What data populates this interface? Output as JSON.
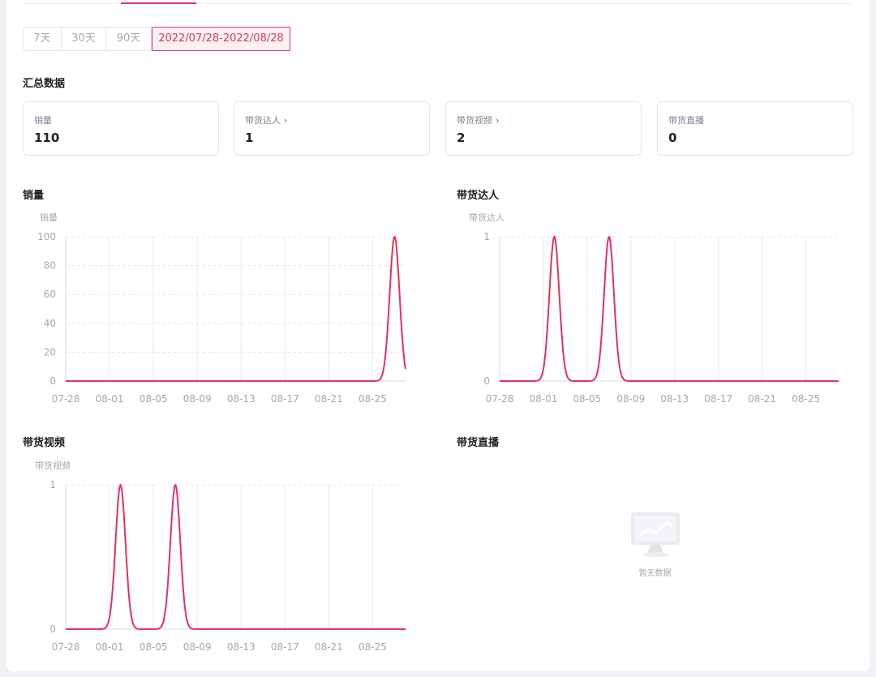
{
  "date_ranges": [
    {
      "label": "7天",
      "width": 48
    },
    {
      "label": "30天",
      "width": 55
    },
    {
      "label": "90天",
      "width": 56
    },
    {
      "label": "2022/07/28-2022/08/28",
      "width": 171,
      "active": true
    }
  ],
  "summary": {
    "title": "汇总数据",
    "cards": [
      {
        "label": "销量",
        "value": "110",
        "link": false
      },
      {
        "label": "带货达人",
        "value": "1",
        "link": true
      },
      {
        "label": "带货视频",
        "value": "2",
        "link": true
      },
      {
        "label": "带货直播",
        "value": "0",
        "link": false
      }
    ]
  },
  "empty_state": {
    "message": "暂无数据"
  },
  "colors": {
    "accent": "#e0335f",
    "axis_text": "#a3a7b3",
    "grid": "#e6e8ee"
  },
  "chart_data": [
    {
      "type": "line",
      "title": "销量",
      "ylabel": "销量",
      "x_ticks": [
        "07-28",
        "08-01",
        "08-05",
        "08-09",
        "08-13",
        "08-17",
        "08-21",
        "08-25"
      ],
      "y_ticks": [
        0,
        20,
        40,
        60,
        80,
        100
      ],
      "ylim": [
        0,
        100
      ],
      "grid": true,
      "series": [
        {
          "peaks": [
            {
              "date": "08-27",
              "value": 100
            }
          ]
        }
      ]
    },
    {
      "type": "line",
      "title": "带货达人",
      "ylabel": "带货达人",
      "x_ticks": [
        "07-28",
        "08-01",
        "08-05",
        "08-09",
        "08-13",
        "08-17",
        "08-21",
        "08-25"
      ],
      "y_ticks": [
        0,
        1
      ],
      "ylim": [
        0,
        1
      ],
      "grid": true,
      "series": [
        {
          "peaks": [
            {
              "date": "08-02",
              "value": 1
            },
            {
              "date": "08-07",
              "value": 1
            }
          ]
        }
      ]
    },
    {
      "type": "line",
      "title": "带货视频",
      "ylabel": "带货视频",
      "x_ticks": [
        "07-28",
        "08-01",
        "08-05",
        "08-09",
        "08-13",
        "08-17",
        "08-21",
        "08-25"
      ],
      "y_ticks": [
        0,
        1
      ],
      "ylim": [
        0,
        1
      ],
      "grid": true,
      "series": [
        {
          "peaks": [
            {
              "date": "08-02",
              "value": 1
            },
            {
              "date": "08-07",
              "value": 1
            }
          ]
        }
      ]
    },
    {
      "type": "line",
      "title": "带货直播",
      "series": []
    }
  ]
}
